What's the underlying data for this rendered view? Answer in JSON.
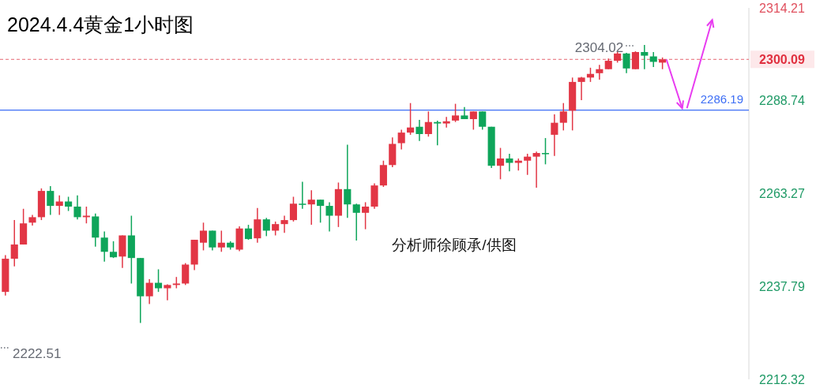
{
  "chart_data": {
    "type": "candlestick",
    "title": "2024.4.4黄金1小时图",
    "categories": [
      null,
      null,
      null,
      null,
      null,
      null,
      null,
      null,
      null,
      null,
      null,
      null,
      null,
      null,
      null,
      null,
      null,
      null,
      null,
      null,
      null,
      null,
      null,
      null,
      null,
      null,
      null,
      null,
      null,
      null,
      null,
      null,
      null,
      null,
      null,
      null,
      null,
      null,
      null,
      null,
      null,
      null,
      null,
      null,
      null,
      null,
      null,
      null,
      null,
      null,
      null,
      null,
      null,
      null,
      null,
      null,
      null,
      null,
      null,
      null,
      null,
      null,
      null,
      null,
      null,
      null,
      null,
      null,
      null,
      null,
      null,
      null,
      null,
      null,
      null,
      null,
      null,
      null,
      null,
      null,
      null,
      null,
      null
    ],
    "ohlc": [
      [
        2236.3,
        2246.4,
        2235.3,
        2245.4
      ],
      [
        2245.4,
        2256.0,
        2243.3,
        2249.3
      ],
      [
        2249.3,
        2259.1,
        2249.3,
        2255.1
      ],
      [
        2255.3,
        2257.4,
        2254.5,
        2256.8
      ],
      [
        2256.8,
        2264.7,
        2256.0,
        2264.0
      ],
      [
        2264.0,
        2265.3,
        2257.4,
        2259.9
      ],
      [
        2259.9,
        2262.8,
        2257.4,
        2261.1
      ],
      [
        2261.1,
        2262.4,
        2258.5,
        2259.7
      ],
      [
        2259.7,
        2262.8,
        2256.2,
        2256.8
      ],
      [
        2256.8,
        2259.7,
        2255.1,
        2257.2
      ],
      [
        2257.0,
        2257.8,
        2248.7,
        2251.2
      ],
      [
        2251.2,
        2252.9,
        2244.6,
        2247.3
      ],
      [
        2247.3,
        2250.2,
        2245.6,
        2245.8
      ],
      [
        2246.0,
        2251.8,
        2242.9,
        2251.8
      ],
      [
        2251.8,
        2257.2,
        2238.6,
        2245.6
      ],
      [
        2245.6,
        2245.6,
        2227.8,
        2235.1
      ],
      [
        2235.1,
        2239.8,
        2233.0,
        2238.8
      ],
      [
        2238.8,
        2242.5,
        2236.3,
        2237.3
      ],
      [
        2237.3,
        2238.4,
        2234.0,
        2238.2
      ],
      [
        2238.2,
        2240.4,
        2237.3,
        2238.6
      ],
      [
        2238.6,
        2244.2,
        2238.2,
        2243.8
      ],
      [
        2243.8,
        2250.6,
        2242.3,
        2250.6
      ],
      [
        2249.8,
        2255.3,
        2247.7,
        2253.1
      ],
      [
        2253.1,
        2253.1,
        2247.7,
        2248.5
      ],
      [
        2248.5,
        2253.1,
        2247.3,
        2249.8
      ],
      [
        2249.8,
        2250.2,
        2247.9,
        2248.5
      ],
      [
        2247.9,
        2254.3,
        2247.5,
        2253.7
      ],
      [
        2253.7,
        2254.7,
        2250.6,
        2250.8
      ],
      [
        2251.0,
        2259.3,
        2249.8,
        2256.2
      ],
      [
        2256.2,
        2256.6,
        2251.6,
        2253.1
      ],
      [
        2253.1,
        2255.6,
        2251.8,
        2254.9
      ],
      [
        2254.9,
        2257.2,
        2252.5,
        2256.0
      ],
      [
        2256.0,
        2262.4,
        2255.6,
        2260.5
      ],
      [
        2260.5,
        2266.5,
        2259.1,
        2260.3
      ],
      [
        2260.3,
        2264.2,
        2254.7,
        2261.6
      ],
      [
        2261.6,
        2261.6,
        2255.3,
        2259.9
      ],
      [
        2259.9,
        2260.9,
        2252.9,
        2257.2
      ],
      [
        2257.2,
        2266.3,
        2254.1,
        2264.5
      ],
      [
        2264.5,
        2276.7,
        2256.6,
        2260.3
      ],
      [
        2260.3,
        2260.5,
        2250.4,
        2258.0
      ],
      [
        2258.0,
        2260.9,
        2253.5,
        2259.7
      ],
      [
        2259.7,
        2266.1,
        2259.1,
        2265.5
      ],
      [
        2265.5,
        2272.3,
        2265.1,
        2271.1
      ],
      [
        2271.1,
        2278.7,
        2270.5,
        2276.9
      ],
      [
        2277.1,
        2280.8,
        2275.4,
        2280.0
      ],
      [
        2280.0,
        2288.1,
        2279.4,
        2281.4
      ],
      [
        2281.6,
        2283.5,
        2277.7,
        2279.6
      ],
      [
        2279.6,
        2285.8,
        2278.9,
        2282.9
      ],
      [
        2282.9,
        2283.3,
        2276.5,
        2282.5
      ],
      [
        2282.5,
        2284.3,
        2281.4,
        2283.1
      ],
      [
        2283.3,
        2287.9,
        2282.9,
        2284.7
      ],
      [
        2284.7,
        2287.0,
        2283.7,
        2283.7
      ],
      [
        2283.7,
        2285.8,
        2280.8,
        2285.8
      ],
      [
        2285.8,
        2285.8,
        2280.8,
        2281.6
      ],
      [
        2281.6,
        2281.6,
        2270.3,
        2270.9
      ],
      [
        2270.9,
        2275.8,
        2267.2,
        2272.9
      ],
      [
        2272.9,
        2274.2,
        2269.4,
        2271.7
      ],
      [
        2271.7,
        2272.9,
        2269.6,
        2272.3
      ],
      [
        2272.3,
        2274.2,
        2268.4,
        2273.4
      ],
      [
        2273.4,
        2274.8,
        2264.9,
        2274.4
      ],
      [
        2274.4,
        2278.5,
        2271.3,
        2274.2
      ],
      [
        2279.4,
        2285.0,
        2273.6,
        2282.7
      ],
      [
        2282.7,
        2288.1,
        2280.6,
        2285.8
      ],
      [
        2286.0,
        2295.1,
        2280.6,
        2293.9
      ],
      [
        2293.9,
        2295.3,
        2288.9,
        2295.1
      ],
      [
        2295.1,
        2297.8,
        2293.9,
        2296.1
      ],
      [
        2296.3,
        2298.6,
        2294.5,
        2297.4
      ],
      [
        2297.4,
        2300.3,
        2297.4,
        2299.7
      ],
      [
        2299.7,
        2302.1,
        2299.2,
        2301.7
      ],
      [
        2301.7,
        2301.9,
        2296.3,
        2297.6
      ],
      [
        2297.4,
        2302.3,
        2297.4,
        2302.1
      ],
      [
        2302.1,
        2304.02,
        2297.4,
        2301.1
      ],
      [
        2300.9,
        2302.1,
        2298.0,
        2299.4
      ],
      [
        2299.2,
        2300.6,
        2297.4,
        2300.09
      ],
      null,
      null,
      null,
      null,
      null,
      null,
      null,
      null,
      null
    ],
    "colors": [
      "#e23645",
      "#e23645",
      "#e23645",
      "#e23645",
      "#e23645",
      "#0ea55a",
      "#e23645",
      "#0ea55a",
      "#0ea55a",
      "#e23645",
      "#0ea55a",
      "#0ea55a",
      "#0ea55a",
      "#e23645",
      "#0ea55a",
      "#0ea55a",
      "#e23645",
      "#0ea55a",
      "#e23645",
      "#e23645",
      "#e23645",
      "#e23645",
      "#e23645",
      "#0ea55a",
      "#e23645",
      "#0ea55a",
      "#e23645",
      "#0ea55a",
      "#e23645",
      "#0ea55a",
      "#e23645",
      "#e23645",
      "#e23645",
      "#0ea55a",
      "#e23645",
      "#0ea55a",
      "#0ea55a",
      "#e23645",
      "#0ea55a",
      "#0ea55a",
      "#e23645",
      "#e23645",
      "#e23645",
      "#e23645",
      "#e23645",
      "#e23645",
      "#0ea55a",
      "#e23645",
      "#0ea55a",
      "#e23645",
      "#e23645",
      "#0ea55a",
      "#e23645",
      "#0ea55a",
      "#0ea55a",
      "#e23645",
      "#0ea55a",
      "#e23645",
      "#e23645",
      "#e23645",
      "#0ea55a",
      "#e23645",
      "#e23645",
      "#e23645",
      "#e23645",
      "#e23645",
      "#e23645",
      "#e23645",
      "#e23645",
      "#0ea55a",
      "#e23645",
      "#0ea55a",
      "#0ea55a",
      "#e23645",
      null,
      null,
      null,
      null,
      null,
      null,
      null,
      null,
      null
    ],
    "ylim": [
      2212.32,
      2314.21
    ],
    "yticks": [
      2212.32,
      2237.79,
      2263.27,
      2288.74,
      2314.21
    ],
    "tick_labels": "y",
    "ref_lines": [
      {
        "axis": "y",
        "value": 2300.09,
        "label": "2300.09",
        "color": "#e5656f",
        "line_style": "dashed"
      },
      {
        "axis": "y",
        "value": 2286.19,
        "label": "2286.19",
        "color": "#3d6ef5",
        "line_style": "solid"
      }
    ],
    "annotations": [
      "分析师徐顾承/供图",
      "2304.02",
      "2222.51"
    ]
  }
}
